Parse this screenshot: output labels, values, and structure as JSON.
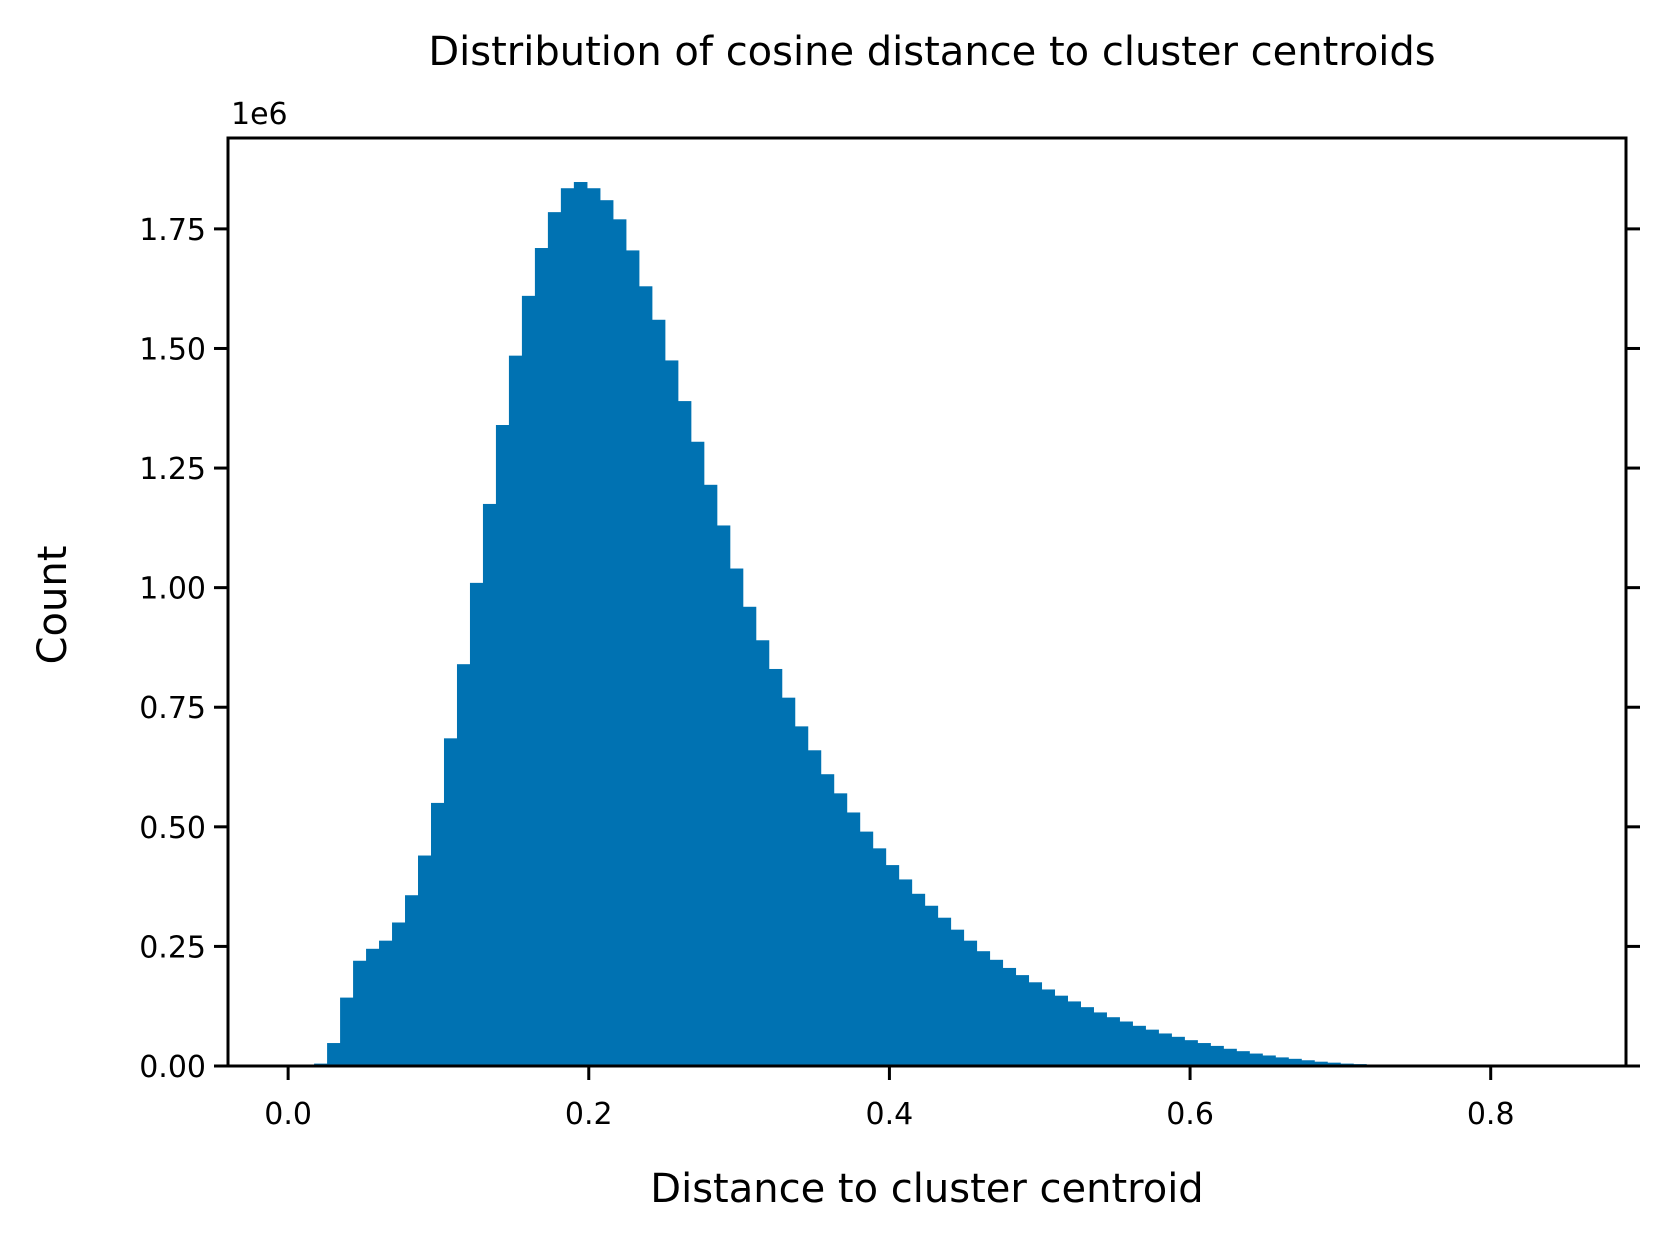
{
  "chart_data": {
    "type": "bar",
    "title": "Distribution of cosine distance to cluster centroids",
    "xlabel": "Distance to cluster centroid",
    "ylabel": "Count",
    "y_offset_label": "1e6",
    "bar_color": "#0072b2",
    "xlim": [
      -0.04,
      0.89
    ],
    "ylim": [
      0,
      1.94
    ],
    "y_unit_multiplier": 1000000,
    "x_ticks": [
      0.0,
      0.2,
      0.4,
      0.6,
      0.8
    ],
    "x_tick_labels": [
      "0.0",
      "0.2",
      "0.4",
      "0.6",
      "0.8"
    ],
    "y_ticks": [
      0.0,
      0.25,
      0.5,
      0.75,
      1.0,
      1.25,
      1.5,
      1.75
    ],
    "y_tick_labels": [
      "0.00",
      "0.25",
      "0.50",
      "0.75",
      "1.00",
      "1.25",
      "1.50",
      "1.75"
    ],
    "bin_start": 0.0,
    "bin_width": 0.00864,
    "values": [
      0,
      0.001,
      0.005,
      0.048,
      0.143,
      0.22,
      0.245,
      0.262,
      0.3,
      0.357,
      0.44,
      0.55,
      0.685,
      0.84,
      1.01,
      1.175,
      1.34,
      1.485,
      1.61,
      1.71,
      1.785,
      1.835,
      1.848,
      1.835,
      1.81,
      1.77,
      1.705,
      1.63,
      1.56,
      1.475,
      1.39,
      1.305,
      1.215,
      1.13,
      1.04,
      0.96,
      0.89,
      0.83,
      0.77,
      0.71,
      0.66,
      0.61,
      0.57,
      0.53,
      0.49,
      0.455,
      0.42,
      0.39,
      0.36,
      0.335,
      0.31,
      0.285,
      0.262,
      0.24,
      0.222,
      0.205,
      0.19,
      0.175,
      0.16,
      0.147,
      0.135,
      0.123,
      0.112,
      0.102,
      0.093,
      0.084,
      0.076,
      0.068,
      0.061,
      0.054,
      0.048,
      0.042,
      0.036,
      0.031,
      0.026,
      0.022,
      0.018,
      0.015,
      0.012,
      0.009,
      0.007,
      0.005,
      0.004,
      0.003,
      0.002,
      0.0015,
      0.001,
      0.0008,
      0.0006,
      0.0004,
      0.0003,
      0.0002,
      0.0001,
      0.0001,
      5e-05,
      3e-05,
      2e-05,
      1e-05,
      1e-05,
      0.0
    ]
  }
}
